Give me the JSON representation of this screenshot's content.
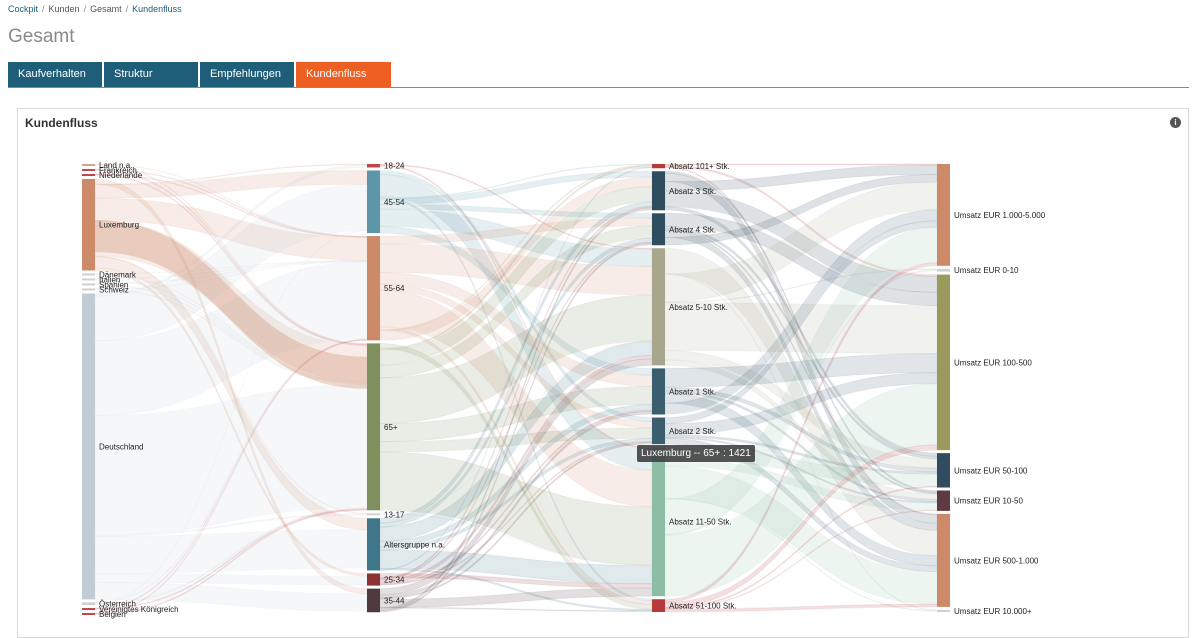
{
  "breadcrumb": {
    "items": [
      "Cockpit",
      "Kunden",
      "Gesamt"
    ],
    "current": "Kundenfluss"
  },
  "page": {
    "title": "Gesamt"
  },
  "tabs": [
    {
      "label": "Kaufverhalten"
    },
    {
      "label": "Struktur"
    },
    {
      "label": "Empfehlungen"
    },
    {
      "label": "Kundenfluss"
    }
  ],
  "panel": {
    "title": "Kundenfluss",
    "info_icon": "info-icon"
  },
  "tooltip": {
    "text": "Luxemburg -- 65+ : 1421"
  },
  "chart_data": {
    "type": "sankey",
    "title": "Kundenfluss",
    "columns": [
      {
        "name": "Land",
        "nodes": [
          {
            "label": "Land n.a.",
            "value": 4,
            "color": "#d9a090"
          },
          {
            "label": "Frankreich",
            "value": 6,
            "color": "#b75056"
          },
          {
            "label": "Niederlande",
            "value": 6,
            "color": "#c0454c"
          },
          {
            "label": "Luxemburg",
            "value": 275,
            "color": "#cc8a68"
          },
          {
            "label": "Dänemark",
            "value": 4,
            "color": "#d0d0d0"
          },
          {
            "label": "Italien",
            "value": 4,
            "color": "#d0d0d0"
          },
          {
            "label": "Spanien",
            "value": 4,
            "color": "#d0d0d0"
          },
          {
            "label": "Schweiz",
            "value": 5,
            "color": "#d0d0d0"
          },
          {
            "label": "Deutschland",
            "value": 920,
            "color": "#c2ccd6"
          },
          {
            "label": "Österreich",
            "value": 8,
            "color": "#d0d0d0"
          },
          {
            "label": "Vereinigtes Königreich",
            "value": 6,
            "color": "#c0454c"
          },
          {
            "label": "Belgien",
            "value": 6,
            "color": "#c0454c"
          }
        ]
      },
      {
        "name": "Altersgruppe",
        "nodes": [
          {
            "label": "18-24",
            "value": 10,
            "color": "#c0454c"
          },
          {
            "label": "45-54",
            "value": 180,
            "color": "#5d97a7"
          },
          {
            "label": "55-64",
            "value": 300,
            "color": "#cc8a68"
          },
          {
            "label": "65+",
            "value": 480,
            "color": "#7f8f5e"
          },
          {
            "label": "13-17",
            "value": 5,
            "color": "#d0d0d0"
          },
          {
            "label": "Altersgruppe n.a.",
            "value": 150,
            "color": "#3f7689"
          },
          {
            "label": "25-34",
            "value": 35,
            "color": "#8c3236"
          },
          {
            "label": "35-44",
            "value": 68,
            "color": "#4f3a40"
          }
        ]
      },
      {
        "name": "Absatz",
        "nodes": [
          {
            "label": "Absatz 101+ Stk.",
            "value": 12,
            "color": "#b53a3a"
          },
          {
            "label": "Absatz 3 Stk.",
            "value": 110,
            "color": "#2f4d5e"
          },
          {
            "label": "Absatz 4 Stk.",
            "value": 90,
            "color": "#2f4d5e"
          },
          {
            "label": "Absatz 5-10 Stk.",
            "value": 330,
            "color": "#a8a78e"
          },
          {
            "label": "Absatz 1 Stk.",
            "value": 130,
            "color": "#3b5e6e"
          },
          {
            "label": "Absatz 2 Stk.",
            "value": 75,
            "color": "#3b5e6e"
          },
          {
            "label": "Absatz 11-50 Stk.",
            "value": 420,
            "color": "#8cbea5"
          },
          {
            "label": "Absatz 51-100 Stk.",
            "value": 36,
            "color": "#b53a3a"
          }
        ]
      },
      {
        "name": "Umsatz",
        "nodes": [
          {
            "label": "Umsatz EUR 1.000-5.000",
            "value": 290,
            "color": "#cc8a68"
          },
          {
            "label": "Umsatz EUR 0-10",
            "value": 8,
            "color": "#d0d0d0"
          },
          {
            "label": "Umsatz EUR 100-500",
            "value": 500,
            "color": "#9a9a5c"
          },
          {
            "label": "Umsatz EUR 50-100",
            "value": 98,
            "color": "#2f4d5e"
          },
          {
            "label": "Umsatz EUR 10-50",
            "value": 58,
            "color": "#5f3a42"
          },
          {
            "label": "Umsatz EUR 500-1.000",
            "value": 265,
            "color": "#cc8a68"
          },
          {
            "label": "Umsatz EUR 10.000+",
            "value": 6,
            "color": "#d0d0d0"
          }
        ]
      }
    ],
    "links": [
      {
        "source": "Luxemburg",
        "target": "65+",
        "value": 1421,
        "highlighted": true
      }
    ]
  }
}
